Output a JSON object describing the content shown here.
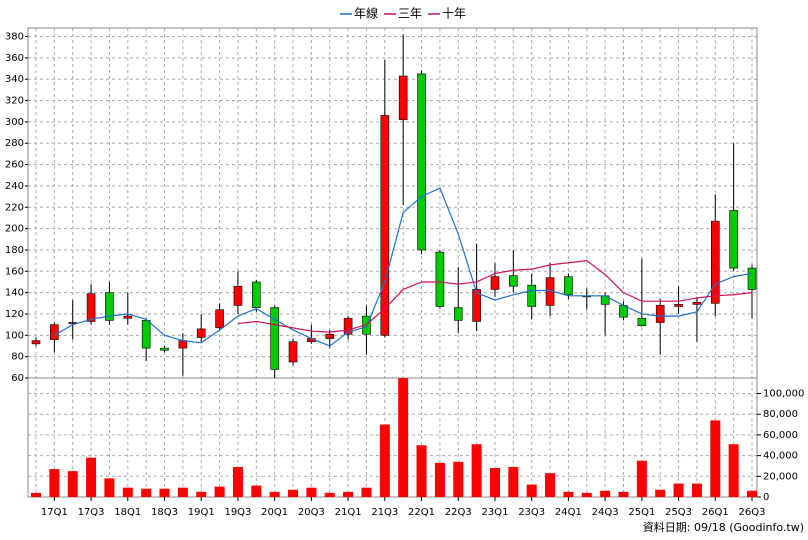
{
  "chart_data": {
    "type": "candlestick",
    "legend": "top",
    "grid": true,
    "categories": [
      null,
      "17Q1",
      null,
      "17Q3",
      null,
      "18Q1",
      null,
      "18Q3",
      null,
      "19Q1",
      null,
      "19Q3",
      null,
      "20Q1",
      null,
      "20Q3",
      null,
      "21Q1",
      null,
      "21Q3",
      null,
      "22Q1",
      null,
      "22Q3",
      null,
      "23Q1",
      null,
      "23Q3",
      null,
      "24Q1",
      null,
      "24Q3",
      null,
      "25Q1",
      null,
      "25Q3",
      null,
      "26Q1",
      null,
      "26Q3"
    ],
    "ylim": [
      60,
      388
    ],
    "yticks": [
      60,
      80,
      100,
      120,
      140,
      160,
      180,
      200,
      220,
      240,
      260,
      280,
      300,
      320,
      340,
      360,
      380
    ],
    "candles": {
      "up_color": "#ff0000",
      "down_color": "#00cc00",
      "open": [
        92,
        96,
        111,
        113,
        140,
        116,
        114,
        88,
        88,
        98,
        107,
        128,
        150,
        126,
        75,
        94,
        97,
        101,
        118,
        100,
        302,
        345,
        178,
        126,
        113,
        143,
        156,
        147,
        128,
        155,
        137,
        137,
        128,
        116,
        112,
        127,
        129,
        130,
        217,
        163
      ],
      "close": [
        95,
        110,
        112,
        139,
        114,
        118,
        88,
        86,
        95,
        106,
        124,
        146,
        126,
        68,
        94,
        97,
        101,
        116,
        101,
        306,
        343,
        180,
        127,
        114,
        143,
        155,
        146,
        127,
        154,
        138,
        136,
        129,
        117,
        109,
        128,
        129,
        131,
        207,
        163,
        143
      ],
      "high": [
        98,
        112,
        133,
        148,
        150,
        140,
        116,
        90,
        102,
        120,
        130,
        160,
        152,
        128,
        97,
        110,
        105,
        118,
        128,
        358,
        382,
        348,
        180,
        164,
        186,
        168,
        180,
        158,
        168,
        158,
        144,
        140,
        132,
        172,
        134,
        146,
        136,
        232,
        280,
        166
      ],
      "low": [
        90,
        84,
        96,
        110,
        110,
        110,
        76,
        84,
        62,
        94,
        104,
        120,
        122,
        60,
        72,
        92,
        88,
        96,
        82,
        98,
        222,
        176,
        125,
        102,
        104,
        136,
        140,
        115,
        118,
        134,
        124,
        100,
        114,
        108,
        82,
        120,
        94,
        118,
        160,
        116
      ]
    },
    "volume": {
      "color": "#ff0000",
      "y2lim": [
        0,
        115000
      ],
      "y2ticks": [
        0,
        {
          "value": 20000,
          "label": "20,000"
        },
        {
          "value": 40000,
          "label": "40,000"
        },
        {
          "value": 60000,
          "label": "60,000"
        },
        {
          "value": 80000,
          "label": "80,000"
        },
        {
          "value": 100000,
          "label": "100,000"
        }
      ],
      "values": [
        4000,
        27000,
        25000,
        38000,
        18000,
        9000,
        8000,
        8000,
        9000,
        5000,
        10000,
        29000,
        11000,
        5000,
        7000,
        9000,
        4000,
        5000,
        9000,
        70000,
        115000,
        50000,
        33000,
        34000,
        51000,
        28000,
        29000,
        12000,
        23000,
        5000,
        4000,
        6000,
        5000,
        35000,
        7000,
        13000,
        13000,
        74000,
        51000,
        6000
      ]
    },
    "series": [
      {
        "name": "年線",
        "color": "#1f6fd0",
        "values": [
          null,
          100,
          110,
          115,
          118,
          120,
          115,
          100,
          95,
          93,
          105,
          118,
          125,
          115,
          105,
          97,
          90,
          103,
          108,
          150,
          215,
          230,
          238,
          195,
          140,
          133,
          138,
          142,
          142,
          137,
          137,
          137,
          128,
          120,
          118,
          118,
          122,
          148,
          155,
          158
        ]
      },
      {
        "name": "三年",
        "color": "#d0105a",
        "values": [
          null,
          null,
          null,
          null,
          null,
          null,
          null,
          null,
          null,
          null,
          null,
          111,
          113,
          110,
          107,
          104,
          103,
          105,
          110,
          125,
          143,
          150,
          150,
          148,
          150,
          158,
          161,
          162,
          166,
          168,
          170,
          157,
          140,
          132,
          132,
          132,
          135,
          137,
          138,
          140
        ]
      },
      {
        "name": "十年",
        "color": "#b0108f",
        "values": [
          null,
          null,
          null,
          null,
          null,
          null,
          null,
          null,
          null,
          null,
          null,
          null,
          null,
          null,
          null,
          null,
          null,
          null,
          null,
          null,
          null,
          null,
          null,
          null,
          null,
          null,
          null,
          null,
          null,
          null,
          null,
          null,
          null,
          null,
          null,
          null,
          null,
          null,
          null,
          null
        ]
      }
    ],
    "footer": "資料日期: 09/18  (Goodinfo.tw)"
  }
}
